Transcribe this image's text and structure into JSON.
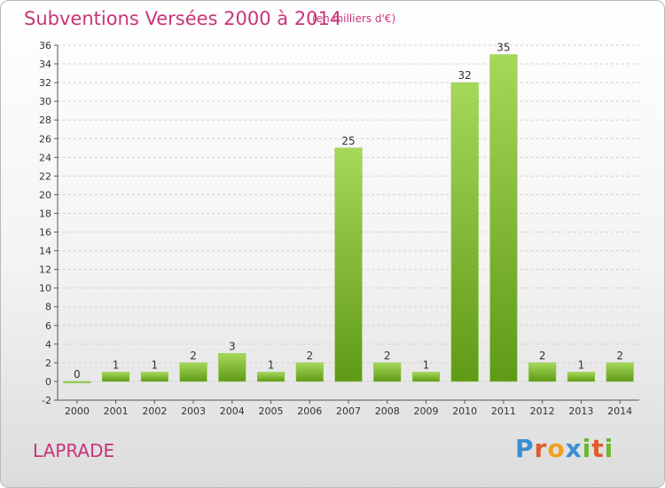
{
  "header": {
    "title": "Subventions Versées 2000 à 2014",
    "unit": "(en milliers d'€)"
  },
  "footer": {
    "commune": "LAPRADE",
    "logo_text": "Proxiti"
  },
  "colors": {
    "title": "#c8347a",
    "bar_light": "#a6d85a",
    "bar_dark": "#5f9a16",
    "grid": "#d0d0d0",
    "axis": "#555555"
  },
  "chart_data": {
    "type": "bar",
    "title": "Subventions Versées 2000 à 2014",
    "xlabel": "",
    "ylabel": "",
    "categories": [
      "2000",
      "2001",
      "2002",
      "2003",
      "2004",
      "2005",
      "2006",
      "2007",
      "2008",
      "2009",
      "2010",
      "2011",
      "2012",
      "2013",
      "2014"
    ],
    "values": [
      0,
      1,
      1,
      2,
      3,
      1,
      2,
      25,
      2,
      1,
      32,
      35,
      2,
      1,
      2
    ],
    "ylim": [
      -2,
      36
    ],
    "yticks": [
      -2,
      0,
      2,
      4,
      6,
      8,
      10,
      12,
      14,
      16,
      18,
      20,
      22,
      24,
      26,
      28,
      30,
      32,
      34,
      36
    ],
    "grid": true,
    "data_labels": true
  }
}
